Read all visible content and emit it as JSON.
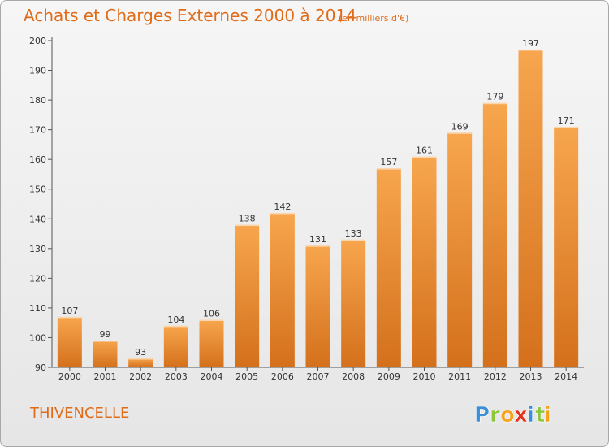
{
  "chart_data": {
    "type": "bar",
    "title": "Achats et Charges Externes 2000 à 2014",
    "subtitle": "(en milliers d'€)",
    "categories": [
      "2000",
      "2001",
      "2002",
      "2003",
      "2004",
      "2005",
      "2006",
      "2007",
      "2008",
      "2009",
      "2010",
      "2011",
      "2012",
      "2013",
      "2014"
    ],
    "values": [
      107,
      99,
      93,
      104,
      106,
      138,
      142,
      131,
      133,
      157,
      161,
      169,
      179,
      197,
      171
    ],
    "ylim": [
      90,
      200
    ],
    "yticks": [
      90,
      100,
      110,
      120,
      130,
      140,
      150,
      160,
      170,
      180,
      190,
      200
    ],
    "grid": false,
    "bar_color": "#f0953a"
  },
  "place_name": "THIVENCELLE",
  "brand": {
    "letters": [
      "P",
      "r",
      "o",
      "x",
      "i",
      "t",
      "i"
    ],
    "colors": [
      "#3a8fd6",
      "#8cc63f",
      "#f7a21b",
      "#e2321a",
      "#3a8fd6",
      "#8cc63f",
      "#f7a21b"
    ]
  },
  "colors": {
    "title": "#e06c1a",
    "place": "#e06c1a"
  }
}
